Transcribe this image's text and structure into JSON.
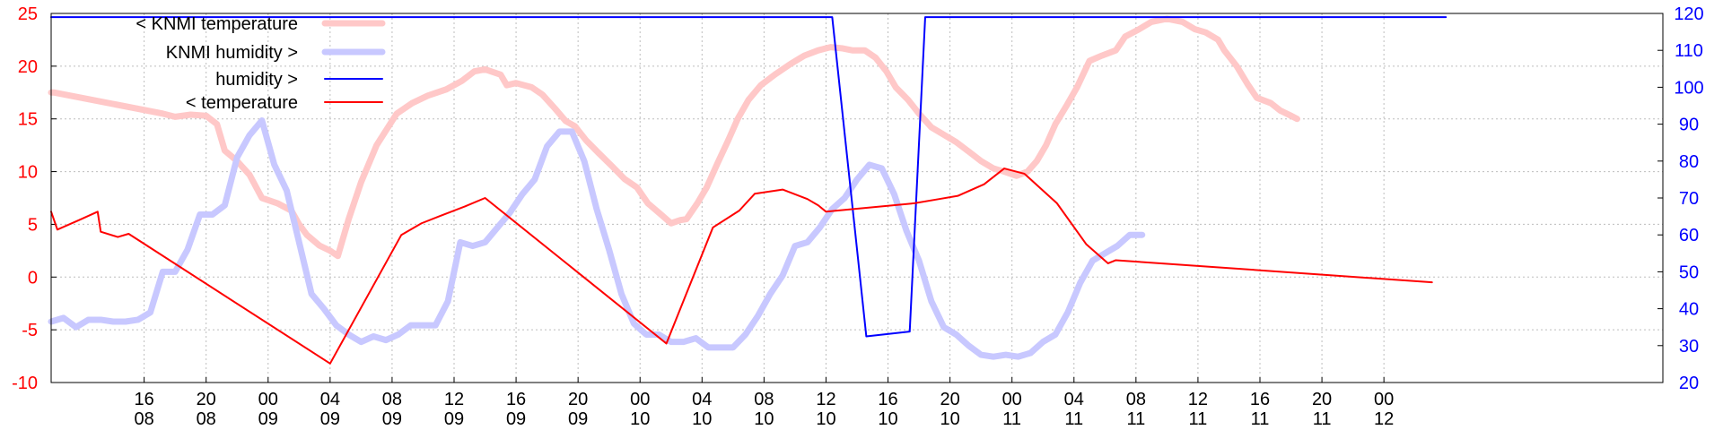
{
  "colors": {
    "knmi_temperature": "#ffc8c8",
    "knmi_humidity": "#c8c8ff",
    "humidity": "#0000ff",
    "temperature": "#ff0000",
    "grid": "#bdbdbd",
    "axis": "#000000",
    "y_left_text": "#ff0000",
    "y_right_text": "#0000ff"
  },
  "chart_data": {
    "type": "line",
    "title": "",
    "xlabel": "",
    "ylabel": "",
    "grid": true,
    "legend_position": "top-left",
    "x_axis": {
      "range": [
        0,
        104
      ],
      "ticks": [
        {
          "x": 6,
          "label_top": "16",
          "label_bottom": "08"
        },
        {
          "x": 10,
          "label_top": "20",
          "label_bottom": "08"
        },
        {
          "x": 14,
          "label_top": "00",
          "label_bottom": "09"
        },
        {
          "x": 18,
          "label_top": "04",
          "label_bottom": "09"
        },
        {
          "x": 22,
          "label_top": "08",
          "label_bottom": "09"
        },
        {
          "x": 26,
          "label_top": "12",
          "label_bottom": "09"
        },
        {
          "x": 30,
          "label_top": "16",
          "label_bottom": "09"
        },
        {
          "x": 34,
          "label_top": "20",
          "label_bottom": "09"
        },
        {
          "x": 38,
          "label_top": "00",
          "label_bottom": "10"
        },
        {
          "x": 42,
          "label_top": "04",
          "label_bottom": "10"
        },
        {
          "x": 46,
          "label_top": "08",
          "label_bottom": "10"
        },
        {
          "x": 50,
          "label_top": "12",
          "label_bottom": "10"
        },
        {
          "x": 54,
          "label_top": "16",
          "label_bottom": "10"
        },
        {
          "x": 58,
          "label_top": "20",
          "label_bottom": "10"
        },
        {
          "x": 62,
          "label_top": "00",
          "label_bottom": "11"
        },
        {
          "x": 66,
          "label_top": "04",
          "label_bottom": "11"
        },
        {
          "x": 70,
          "label_top": "08",
          "label_bottom": "11"
        },
        {
          "x": 74,
          "label_top": "12",
          "label_bottom": "11"
        },
        {
          "x": 78,
          "label_top": "16",
          "label_bottom": "11"
        },
        {
          "x": 82,
          "label_top": "20",
          "label_bottom": "11"
        },
        {
          "x": 86,
          "label_top": "00",
          "label_bottom": "12"
        }
      ]
    },
    "y_left": {
      "range": [
        -10,
        25
      ],
      "ticks": [
        -10,
        -5,
        0,
        5,
        10,
        15,
        20,
        25
      ]
    },
    "y_right": {
      "range": [
        20,
        120
      ],
      "ticks": [
        20,
        30,
        40,
        50,
        60,
        70,
        80,
        90,
        100,
        110,
        120
      ]
    },
    "series": [
      {
        "name": "< KNMI temperature",
        "axis": "left",
        "line_width": 7,
        "points": [
          [
            0,
            17.5
          ],
          [
            0.2,
            17.5
          ],
          [
            7.2,
            15.5
          ],
          [
            8.0,
            15.2
          ],
          [
            9.0,
            15.4
          ],
          [
            10.0,
            15.3
          ],
          [
            10.7,
            14.5
          ],
          [
            11.2,
            12.0
          ],
          [
            12.0,
            11.0
          ],
          [
            12.8,
            9.7
          ],
          [
            13.6,
            7.5
          ],
          [
            14.6,
            7.0
          ],
          [
            15.5,
            6.3
          ],
          [
            16.0,
            5.0
          ],
          [
            16.5,
            4.0
          ],
          [
            17.3,
            3.0
          ],
          [
            18.0,
            2.5
          ],
          [
            18.5,
            2.0
          ],
          [
            19.2,
            5.5
          ],
          [
            20.0,
            9.0
          ],
          [
            21.0,
            12.5
          ],
          [
            22.3,
            15.5
          ],
          [
            23.3,
            16.5
          ],
          [
            24.3,
            17.2
          ],
          [
            25.5,
            17.8
          ],
          [
            26.5,
            18.6
          ],
          [
            27.3,
            19.5
          ],
          [
            28.0,
            19.7
          ],
          [
            29.0,
            19.2
          ],
          [
            29.4,
            18.2
          ],
          [
            30.0,
            18.4
          ],
          [
            31.0,
            18.0
          ],
          [
            31.7,
            17.3
          ],
          [
            32.5,
            16.0
          ],
          [
            33.2,
            14.8
          ],
          [
            33.8,
            14.3
          ],
          [
            34.5,
            13.0
          ],
          [
            35.3,
            11.8
          ],
          [
            36.2,
            10.5
          ],
          [
            37.0,
            9.3
          ],
          [
            37.8,
            8.5
          ],
          [
            38.5,
            7.0
          ],
          [
            39.3,
            6.0
          ],
          [
            40.0,
            5.1
          ],
          [
            40.6,
            5.4
          ],
          [
            41.0,
            5.5
          ],
          [
            41.7,
            7.0
          ],
          [
            42.3,
            8.5
          ],
          [
            43.0,
            10.8
          ],
          [
            43.7,
            13.0
          ],
          [
            44.3,
            15.0
          ],
          [
            45.0,
            16.8
          ],
          [
            45.8,
            18.2
          ],
          [
            46.7,
            19.2
          ],
          [
            47.7,
            20.2
          ],
          [
            48.6,
            21.0
          ],
          [
            49.5,
            21.5
          ],
          [
            50.3,
            21.8
          ],
          [
            51.0,
            21.7
          ],
          [
            51.7,
            21.5
          ],
          [
            52.5,
            21.5
          ],
          [
            53.2,
            20.8
          ],
          [
            53.9,
            19.5
          ],
          [
            54.5,
            18.0
          ],
          [
            55.3,
            16.8
          ],
          [
            56.0,
            15.5
          ],
          [
            56.8,
            14.2
          ],
          [
            57.6,
            13.5
          ],
          [
            58.4,
            12.8
          ],
          [
            59.3,
            11.8
          ],
          [
            60.0,
            11.0
          ],
          [
            60.8,
            10.3
          ],
          [
            61.5,
            10.0
          ],
          [
            62.3,
            9.6
          ],
          [
            63.0,
            10.0
          ],
          [
            63.6,
            11.0
          ],
          [
            64.2,
            12.5
          ],
          [
            64.8,
            14.5
          ],
          [
            65.5,
            16.2
          ],
          [
            66.2,
            18.0
          ],
          [
            67.0,
            20.5
          ],
          [
            67.8,
            21.0
          ],
          [
            68.7,
            21.5
          ],
          [
            69.3,
            22.8
          ],
          [
            70.2,
            23.5
          ],
          [
            71.0,
            24.2
          ],
          [
            72.0,
            24.5
          ],
          [
            73.0,
            24.2
          ],
          [
            73.8,
            23.5
          ],
          [
            74.5,
            23.2
          ],
          [
            75.3,
            22.5
          ],
          [
            75.7,
            21.5
          ],
          [
            76.5,
            20.0
          ],
          [
            77.2,
            18.3
          ],
          [
            77.8,
            17.0
          ],
          [
            78.7,
            16.5
          ],
          [
            79.3,
            15.8
          ],
          [
            80.0,
            15.3
          ],
          [
            80.4,
            15.0
          ]
        ]
      },
      {
        "name": "KNMI humidity >",
        "axis": "right",
        "line_width": 7,
        "points": [
          [
            0,
            36.5
          ],
          [
            0.8,
            37.5
          ],
          [
            1.6,
            35.0
          ],
          [
            2.4,
            37.0
          ],
          [
            3.2,
            37.0
          ],
          [
            4.0,
            36.5
          ],
          [
            4.8,
            36.5
          ],
          [
            5.6,
            37.0
          ],
          [
            6.4,
            39.0
          ],
          [
            7.2,
            50.0
          ],
          [
            8.0,
            50.0
          ],
          [
            8.8,
            56.0
          ],
          [
            9.6,
            65.5
          ],
          [
            10.4,
            65.5
          ],
          [
            11.2,
            68.0
          ],
          [
            12.0,
            81.0
          ],
          [
            12.8,
            87.0
          ],
          [
            13.6,
            91.0
          ],
          [
            14.4,
            79.0
          ],
          [
            15.2,
            72.0
          ],
          [
            16.0,
            58.0
          ],
          [
            16.8,
            44.0
          ],
          [
            17.6,
            40.0
          ],
          [
            18.4,
            35.5
          ],
          [
            19.2,
            33.0
          ],
          [
            20.0,
            31.0
          ],
          [
            20.8,
            32.5
          ],
          [
            21.6,
            31.5
          ],
          [
            22.4,
            33.0
          ],
          [
            23.2,
            35.5
          ],
          [
            24.0,
            35.5
          ],
          [
            24.8,
            35.5
          ],
          [
            25.6,
            42.0
          ],
          [
            26.4,
            58.0
          ],
          [
            27.2,
            57.0
          ],
          [
            28.0,
            58.0
          ],
          [
            28.8,
            62.0
          ],
          [
            29.6,
            66.0
          ],
          [
            30.4,
            71.0
          ],
          [
            31.2,
            75.0
          ],
          [
            32.0,
            84.0
          ],
          [
            32.8,
            88.0
          ],
          [
            33.6,
            88.0
          ],
          [
            34.4,
            80.0
          ],
          [
            35.2,
            67.0
          ],
          [
            36.0,
            56.0
          ],
          [
            36.8,
            44.0
          ],
          [
            37.6,
            36.0
          ],
          [
            38.4,
            33.0
          ],
          [
            39.2,
            33.0
          ],
          [
            40.0,
            31.0
          ],
          [
            40.8,
            31.0
          ],
          [
            41.6,
            32.0
          ],
          [
            42.4,
            29.5
          ],
          [
            43.2,
            29.5
          ],
          [
            44.0,
            29.5
          ],
          [
            44.8,
            33.0
          ],
          [
            45.6,
            38.0
          ],
          [
            46.4,
            44.0
          ],
          [
            47.2,
            49.0
          ],
          [
            48.0,
            57.0
          ],
          [
            48.8,
            58.0
          ],
          [
            49.6,
            62.0
          ],
          [
            50.4,
            67.0
          ],
          [
            51.2,
            70.0
          ],
          [
            52.0,
            75.0
          ],
          [
            52.8,
            79.0
          ],
          [
            53.6,
            78.0
          ],
          [
            54.4,
            71.0
          ],
          [
            55.2,
            61.0
          ],
          [
            56.0,
            53.0
          ],
          [
            56.8,
            42.0
          ],
          [
            57.6,
            35.0
          ],
          [
            58.4,
            33.0
          ],
          [
            59.2,
            30.0
          ],
          [
            60.0,
            27.5
          ],
          [
            60.8,
            27.0
          ],
          [
            61.6,
            27.5
          ],
          [
            62.4,
            27.0
          ],
          [
            63.2,
            28.0
          ],
          [
            64.0,
            31.0
          ],
          [
            64.8,
            33.0
          ],
          [
            65.6,
            39.0
          ],
          [
            66.4,
            47.0
          ],
          [
            67.2,
            53.0
          ],
          [
            68.0,
            55.0
          ],
          [
            68.8,
            57.0
          ],
          [
            69.6,
            60.0
          ],
          [
            70.4,
            60.0
          ]
        ]
      },
      {
        "name": "humidity >",
        "axis": "right",
        "line_width": 2,
        "points": [
          [
            0,
            119
          ],
          [
            50.4,
            119
          ],
          [
            52.6,
            32.5
          ],
          [
            55.4,
            33.8
          ],
          [
            56.4,
            119
          ],
          [
            90.0,
            119
          ]
        ]
      },
      {
        "name": "< temperature",
        "axis": "left",
        "line_width": 2,
        "points": [
          [
            0,
            6.2
          ],
          [
            0.4,
            4.5
          ],
          [
            1.8,
            5.4
          ],
          [
            3.0,
            6.2
          ],
          [
            3.2,
            4.3
          ],
          [
            4.3,
            3.8
          ],
          [
            5.0,
            4.1
          ],
          [
            18.0,
            -8.2
          ],
          [
            22.6,
            4.0
          ],
          [
            23.9,
            5.1
          ],
          [
            25.1,
            5.8
          ],
          [
            26.7,
            6.7
          ],
          [
            28.0,
            7.5
          ],
          [
            39.7,
            -6.3
          ],
          [
            42.7,
            4.7
          ],
          [
            44.4,
            6.3
          ],
          [
            45.4,
            7.9
          ],
          [
            47.2,
            8.3
          ],
          [
            48.8,
            7.4
          ],
          [
            49.5,
            6.8
          ],
          [
            50.0,
            6.2
          ],
          [
            55.7,
            7.0
          ],
          [
            57.3,
            7.4
          ],
          [
            58.5,
            7.7
          ],
          [
            60.2,
            8.8
          ],
          [
            61.5,
            10.3
          ],
          [
            62.8,
            9.8
          ],
          [
            64.9,
            7.0
          ],
          [
            66.8,
            3.1
          ],
          [
            68.2,
            1.3
          ],
          [
            68.7,
            1.6
          ],
          [
            89.1,
            -0.5
          ]
        ]
      }
    ]
  },
  "legend": {
    "items": [
      {
        "label": "< KNMI temperature",
        "color_key": "knmi_temperature",
        "line_width": 7
      },
      {
        "label": "KNMI humidity >",
        "color_key": "knmi_humidity",
        "line_width": 7
      },
      {
        "label": "humidity >",
        "color_key": "humidity",
        "line_width": 2
      },
      {
        "label": "< temperature",
        "color_key": "temperature",
        "line_width": 2
      }
    ]
  }
}
